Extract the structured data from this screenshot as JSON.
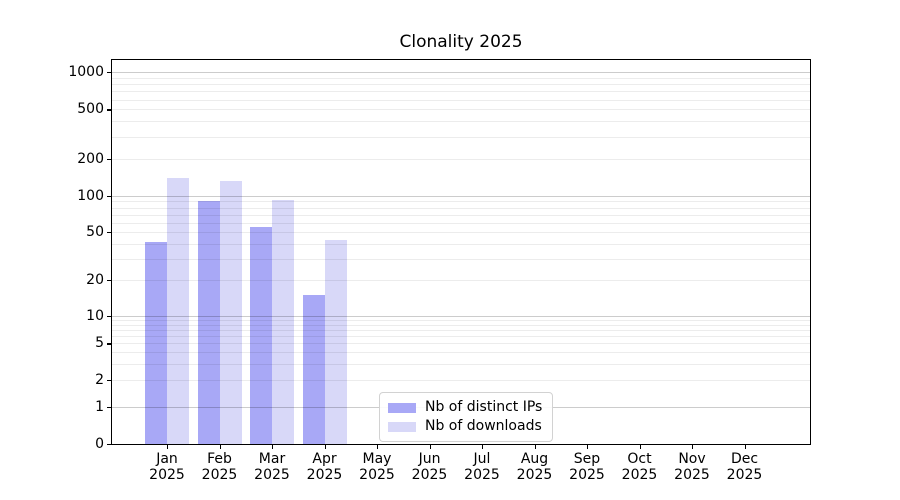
{
  "chart_data": {
    "type": "bar",
    "title": "Clonality 2025",
    "categories": [
      "Jan 2025",
      "Feb 2025",
      "Mar 2025",
      "Apr 2025",
      "May 2025",
      "Jun 2025",
      "Jul 2025",
      "Aug 2025",
      "Sep 2025",
      "Oct 2025",
      "Nov 2025",
      "Dec 2025"
    ],
    "series": [
      {
        "name": "Nb of distinct IPs",
        "color": "#a8a8f6",
        "values": [
          41,
          90,
          55,
          15,
          0,
          0,
          0,
          0,
          0,
          0,
          0,
          0
        ]
      },
      {
        "name": "Nb of downloads",
        "color": "#d8d8f8",
        "values": [
          140,
          133,
          92,
          43,
          0,
          0,
          0,
          0,
          0,
          0,
          0,
          0
        ]
      }
    ],
    "xlabel": "",
    "ylabel": "",
    "yscale": "symlog",
    "ylim": [
      0,
      1000
    ],
    "yticks": [
      0,
      1,
      2,
      5,
      10,
      20,
      50,
      100,
      200,
      500,
      1000
    ],
    "grid": true,
    "legend": {
      "position": "lower-center-inside",
      "items": [
        "Nb of distinct IPs",
        "Nb of downloads"
      ]
    },
    "colors": {
      "spine": "#000000",
      "major_grid": "#cccccc",
      "minor_grid": "#ebebeb",
      "background": "#ffffff"
    }
  }
}
